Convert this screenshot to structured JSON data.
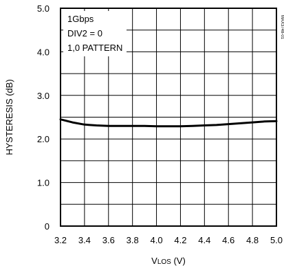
{
  "chart_data": {
    "type": "line",
    "title": "",
    "xlabel_main": "V",
    "xlabel_sub": "LOS",
    "xlabel_unit": " (V)",
    "ylabel": "HYSTERESIS (dB)",
    "xlim": [
      3.2,
      5.0
    ],
    "ylim": [
      0,
      5.0
    ],
    "x_ticks": [
      3.2,
      3.4,
      3.6,
      3.8,
      4.0,
      4.2,
      4.4,
      4.6,
      4.8,
      5.0
    ],
    "x_tick_labels": [
      "3.2",
      "3.4",
      "3.6",
      "3.8",
      "4.0",
      "4.2",
      "4.4",
      "4.6",
      "4.8",
      "5.0"
    ],
    "y_ticks": [
      0,
      0.5,
      1.0,
      1.5,
      2.0,
      2.5,
      3.0,
      3.5,
      4.0,
      4.5,
      5.0
    ],
    "y_tick_labels": [
      "0",
      "",
      "1.0",
      "",
      "2.0",
      "",
      "3.0",
      "",
      "4.0",
      "",
      "5.0"
    ],
    "grid": true,
    "annotations": [
      "1Gbps",
      "DIV2 = 0",
      "1,0 PATTERN"
    ],
    "side_id": "MAX3748-01",
    "series": [
      {
        "x": [
          3.2,
          3.3,
          3.4,
          3.5,
          3.6,
          3.7,
          3.8,
          3.9,
          4.0,
          4.1,
          4.2,
          4.3,
          4.4,
          4.5,
          4.6,
          4.7,
          4.8,
          4.9,
          5.0
        ],
        "values": [
          2.45,
          2.38,
          2.33,
          2.31,
          2.3,
          2.3,
          2.3,
          2.3,
          2.29,
          2.29,
          2.29,
          2.3,
          2.31,
          2.32,
          2.34,
          2.36,
          2.38,
          2.4,
          2.41
        ]
      }
    ]
  }
}
